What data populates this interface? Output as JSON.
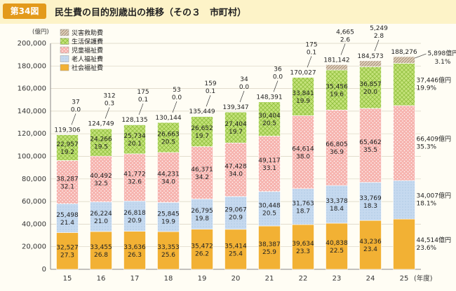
{
  "header": {
    "badge": "第34図",
    "title": "民生費の目的別歳出の推移（その３　市町村）"
  },
  "colors": {
    "social": "#f2b134",
    "elderly": "#c5d9ef",
    "child": "#f6b3ae",
    "livelihood": "#c4e27a",
    "disaster": "#dfcfbc",
    "background": "#fffdf4",
    "header_bg": "#fdf3c8",
    "badge": "#e39a1b"
  },
  "chart_data": {
    "type": "bar",
    "stacked": true,
    "ylabel": "(億円)",
    "xunit": "(年度)",
    "ylim": [
      0,
      200000
    ],
    "yticks": [
      "0",
      "20,000",
      "40,000",
      "60,000",
      "80,000",
      "100,000",
      "120,000",
      "140,000",
      "160,000",
      "180,000",
      "200,000"
    ],
    "categories": [
      "15",
      "16",
      "17",
      "18",
      "19",
      "20",
      "21",
      "22",
      "23",
      "24",
      "25"
    ],
    "legend": [
      "災害救助費",
      "生活保護費",
      "児童福祉費",
      "老人福祉費",
      "社会福祉費"
    ],
    "series": [
      {
        "name": "社会福祉費",
        "key": "social",
        "values": [
          32527,
          33455,
          33636,
          33353,
          35472,
          35414,
          38387,
          39634,
          40838,
          43236,
          44514
        ],
        "labels": [
          "32,527",
          "33,455",
          "33,636",
          "33,353",
          "35,472",
          "35,414",
          "38,387",
          "39,634",
          "40,838",
          "43,236",
          "44,514億円"
        ],
        "pct": [
          "27.3",
          "26.8",
          "26.3",
          "25.6",
          "26.2",
          "25.4",
          "25.9",
          "23.3",
          "22.5",
          "23.4",
          "23.6%"
        ]
      },
      {
        "name": "老人福祉費",
        "key": "elderly",
        "values": [
          25498,
          26224,
          26818,
          25845,
          26795,
          29067,
          30448,
          31763,
          33378,
          33769,
          34007
        ],
        "labels": [
          "25,498",
          "26,224",
          "26,818",
          "25,845",
          "26,795",
          "29,067",
          "30,448",
          "31,763",
          "33,378",
          "33,769",
          "34,007億円"
        ],
        "pct": [
          "21.4",
          "21.0",
          "20.9",
          "19.9",
          "19.8",
          "20.9",
          "20.5",
          "18.7",
          "18.4",
          "18.3",
          "18.1%"
        ]
      },
      {
        "name": "児童福祉費",
        "key": "child",
        "values": [
          38287,
          40492,
          41772,
          44231,
          46371,
          47428,
          49117,
          64614,
          66805,
          65462,
          66409
        ],
        "labels": [
          "38,287",
          "40,492",
          "41,772",
          "44,231",
          "46,371",
          "47,428",
          "49,117",
          "64,614",
          "66,805",
          "65,462",
          "66,409億円"
        ],
        "pct": [
          "32.1",
          "32.5",
          "32.6",
          "34.0",
          "34.2",
          "34.0",
          "33.1",
          "38.0",
          "36.9",
          "35.5",
          "35.3%"
        ]
      },
      {
        "name": "生活保護費",
        "key": "livelihood",
        "values": [
          22957,
          24266,
          25734,
          26663,
          26652,
          27404,
          30404,
          33841,
          35456,
          36857,
          37446
        ],
        "labels": [
          "22,957",
          "24,266",
          "25,734",
          "26,663",
          "26,652",
          "27,404",
          "30,404",
          "33,841",
          "35,456",
          "36,857",
          "37,446億円"
        ],
        "pct": [
          "19.2",
          "19.5",
          "20.1",
          "20.5",
          "19.7",
          "19.7",
          "20.5",
          "19.9",
          "19.6",
          "20.0",
          "19.9%"
        ]
      },
      {
        "name": "災害救助費",
        "key": "disaster",
        "values": [
          37,
          312,
          175,
          53,
          159,
          34,
          36,
          175,
          4665,
          5249,
          5898
        ],
        "labels": [
          "37",
          "312",
          "175",
          "53",
          "159",
          "34",
          "36",
          "175",
          "4,665",
          "5,249",
          "5,898億円"
        ],
        "pct": [
          "0.0",
          "0.3",
          "0.1",
          "0.0",
          "0.1",
          "0.0",
          "0.0",
          "0.1",
          "2.6",
          "2.8",
          "3.1%"
        ]
      }
    ],
    "totals": [
      119306,
      124749,
      128135,
      130144,
      135449,
      139347,
      148391,
      170027,
      181142,
      184573,
      188276
    ],
    "total_labels": [
      "119,306",
      "124,749",
      "128,135",
      "130,144",
      "135,449",
      "139,347",
      "148,391",
      "170,027",
      "181,142",
      "184,573",
      "188,276"
    ]
  }
}
